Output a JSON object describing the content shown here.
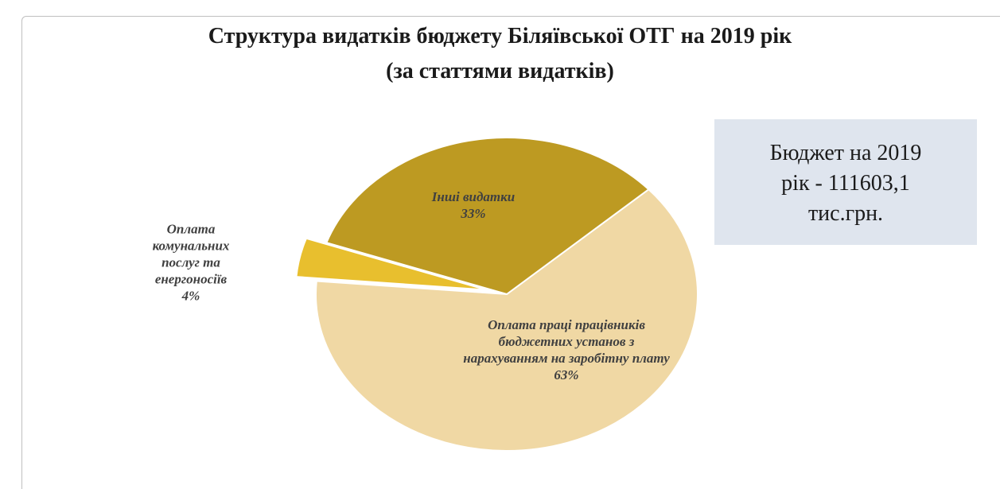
{
  "chart_data": {
    "type": "pie",
    "title": "Структура видатків бюджету Біляївської ОТГ на 2019 рік",
    "subtitle": "(за статтями видатків)",
    "categories": [
      "Оплата праці працівників бюджетних установ з нарахуванням на заробітну плату",
      "Оплата комунальних послуг та енергоносіїв",
      "Інші видатки"
    ],
    "values": [
      63,
      4,
      33
    ],
    "value_labels": [
      "63%",
      "4%",
      "33%"
    ],
    "colors": [
      "#f0d8a4",
      "#e8bf2e",
      "#bd9a22"
    ],
    "exploded": [
      false,
      true,
      false
    ],
    "annotation": "Бюджет на 2019 рік - 111603,1 тис.грн."
  }
}
